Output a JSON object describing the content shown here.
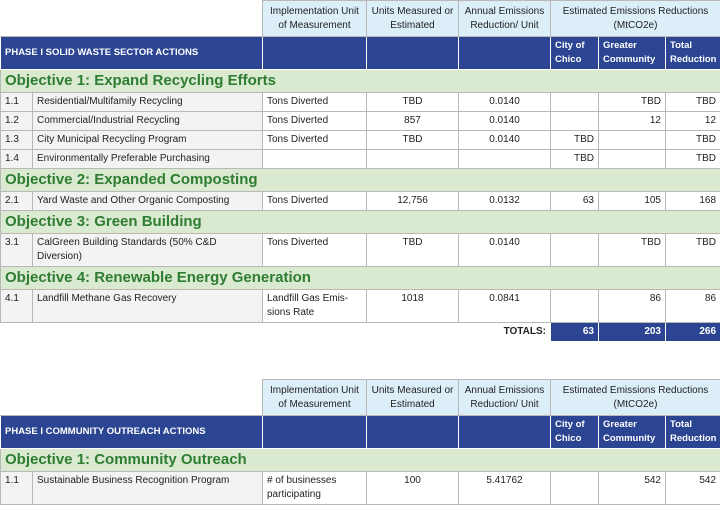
{
  "tables": [
    {
      "header": {
        "unit": "Implementation Unit of Measurement",
        "measured": "Units Measured or Estimated",
        "annual": "Annual Emissions Reduction/ Unit",
        "estimated": "Estimated Emissions Reductions (MtCO2e)"
      },
      "section": "PHASE I SOLID WASTE SECTOR ACTIONS",
      "subheaders": [
        "City of Chico",
        "Greater Community",
        "Total Reduction"
      ],
      "groups": [
        {
          "objective": "Objective 1:  Expand Recycling Efforts",
          "rows": [
            {
              "id": "1.1",
              "action": "Residential/Multifamily Recycling",
              "unit": "Tons Diverted",
              "measured": "TBD",
              "annual": "0.0140",
              "greater": "TBD",
              "total": "TBD"
            },
            {
              "id": "1.2",
              "action": "Commercial/Industrial Recycling",
              "unit": "Tons Diverted",
              "measured": "857",
              "annual": "0.0140",
              "greater": "12",
              "total": "12"
            },
            {
              "id": "1.3",
              "action": "City Municipal Recycling Program",
              "unit": "Tons Diverted",
              "measured": "TBD",
              "annual": "0.0140",
              "city": "TBD",
              "total": "TBD"
            },
            {
              "id": "1.4",
              "action": "Environmentally Preferable Purchasing",
              "city": "TBD",
              "total": "TBD"
            }
          ]
        },
        {
          "objective": "Objective 2:  Expanded Composting",
          "rows": [
            {
              "id": "2.1",
              "action": "Yard Waste and Other Organic Composting",
              "unit": "Tons Diverted",
              "measured": "12,756",
              "annual": "0.0132",
              "city": "63",
              "greater": "105",
              "total": "168"
            }
          ]
        },
        {
          "objective": "Objective 3:  Green Building",
          "rows": [
            {
              "id": "3.1",
              "action": "CalGreen Building Standards (50% C&D Diversion)",
              "unit": "Tons Diverted",
              "measured": "TBD",
              "annual": "0.0140",
              "greater": "TBD",
              "total": "TBD"
            }
          ]
        },
        {
          "objective": "Objective 4:  Renewable Energy Generation",
          "rows": [
            {
              "id": "4.1",
              "action": "Landfill Methane Gas Recovery",
              "unit": "Landfill Gas Emis-sions Rate",
              "measured": "1018",
              "annual": "0.0841",
              "greater": "86",
              "total": "86"
            }
          ]
        }
      ],
      "totals": {
        "label": "TOTALS:",
        "city": "63",
        "greater": "203",
        "total": "266"
      }
    },
    {
      "header": {
        "unit": "Implementation Unit of Measurement",
        "measured": "Units Measured or Estimated",
        "annual": "Annual Emissions Reduction/ Unit",
        "estimated": "Estimated Emissions Reductions (MtCO2e)"
      },
      "section": "PHASE I COMMUNITY OUTREACH ACTIONS",
      "subheaders": [
        "City of Chico",
        "Greater Community",
        "Total Reduction"
      ],
      "groups": [
        {
          "objective": "Objective 1:  Community Outreach",
          "rows": [
            {
              "id": "1.1",
              "action": "Sustainable Business Recognition Program",
              "unit": "# of businesses participating",
              "measured": "100",
              "annual": "5.41762",
              "greater": "542",
              "total": "542"
            }
          ]
        }
      ]
    }
  ]
}
